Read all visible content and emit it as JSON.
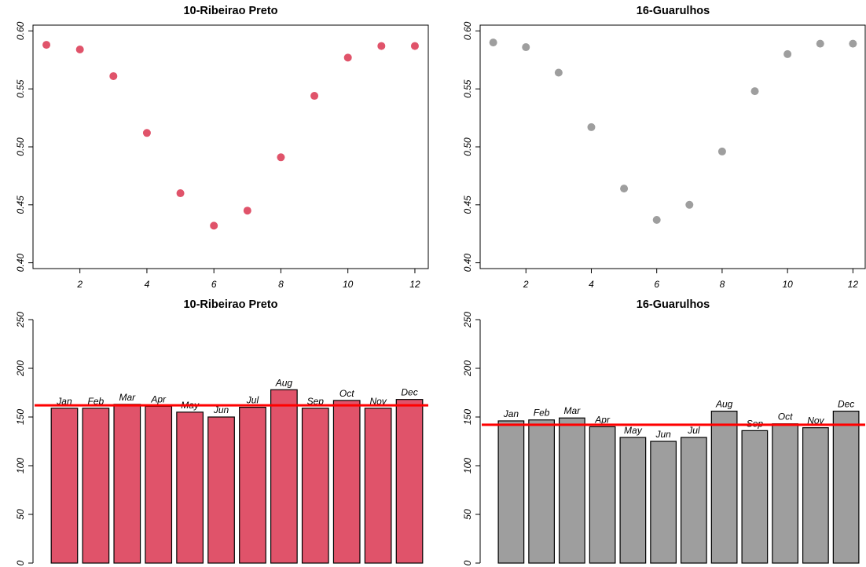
{
  "chart_data": [
    {
      "type": "scatter",
      "title": "10-Ribeirao Preto",
      "x": [
        1,
        2,
        3,
        4,
        5,
        6,
        7,
        8,
        9,
        10,
        11,
        12
      ],
      "y": [
        0.588,
        0.584,
        0.561,
        0.512,
        0.46,
        0.432,
        0.445,
        0.491,
        0.544,
        0.577,
        0.587,
        0.587
      ],
      "xlim": [
        0.6,
        12.4
      ],
      "ylim": [
        0.395,
        0.605
      ],
      "xticks": [
        2,
        4,
        6,
        8,
        10,
        12
      ],
      "yticks": [
        0.4,
        0.45,
        0.5,
        0.55,
        0.6
      ],
      "ytick_labels": [
        "0.40",
        "0.45",
        "0.50",
        "0.55",
        "0.60"
      ],
      "color": "#e0536a",
      "grid": false
    },
    {
      "type": "scatter",
      "title": "16-Guarulhos",
      "x": [
        1,
        2,
        3,
        4,
        5,
        6,
        7,
        8,
        9,
        10,
        11,
        12
      ],
      "y": [
        0.59,
        0.586,
        0.564,
        0.517,
        0.464,
        0.437,
        0.45,
        0.496,
        0.548,
        0.58,
        0.589,
        0.589
      ],
      "xlim": [
        0.6,
        12.4
      ],
      "ylim": [
        0.395,
        0.605
      ],
      "xticks": [
        2,
        4,
        6,
        8,
        10,
        12
      ],
      "yticks": [
        0.4,
        0.45,
        0.5,
        0.55,
        0.6
      ],
      "ytick_labels": [
        "0.40",
        "0.45",
        "0.50",
        "0.55",
        "0.60"
      ],
      "color": "#9e9e9e",
      "grid": false
    },
    {
      "type": "bar",
      "title": "10-Ribeirao Preto",
      "categories": [
        "Jan",
        "Feb",
        "Mar",
        "Apr",
        "May",
        "Jun",
        "Jul",
        "Aug",
        "Sep",
        "Oct",
        "Nov",
        "Dec"
      ],
      "values": [
        159,
        159,
        163,
        161,
        155,
        150,
        160,
        178,
        159,
        167,
        159,
        168
      ],
      "reference_line": 162,
      "ylim": [
        0,
        250
      ],
      "yticks": [
        0,
        50,
        100,
        150,
        200,
        250
      ],
      "color": "#e0536a",
      "line_color": "#ff0000",
      "grid": false
    },
    {
      "type": "bar",
      "title": "16-Guarulhos",
      "categories": [
        "Jan",
        "Feb",
        "Mar",
        "Apr",
        "May",
        "Jun",
        "Jul",
        "Aug",
        "Sep",
        "Oct",
        "Nov",
        "Dec"
      ],
      "values": [
        146,
        147,
        149,
        140,
        129,
        125,
        129,
        156,
        136,
        143,
        139,
        156
      ],
      "reference_line": 142,
      "ylim": [
        0,
        250
      ],
      "yticks": [
        0,
        50,
        100,
        150,
        200,
        250
      ],
      "color": "#9e9e9e",
      "line_color": "#ff0000",
      "grid": false
    }
  ]
}
